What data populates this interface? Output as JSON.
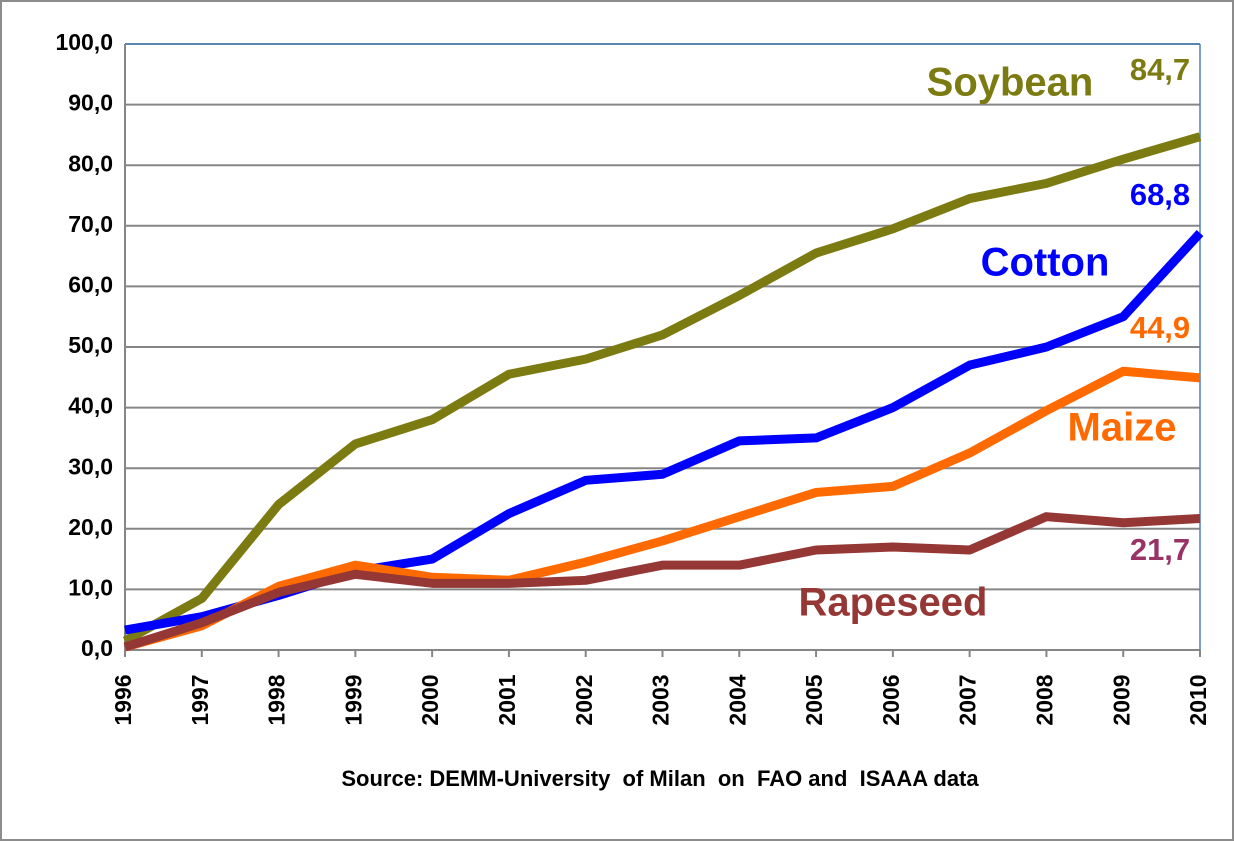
{
  "chart_data": {
    "type": "line",
    "categories": [
      "1996",
      "1997",
      "1998",
      "1999",
      "2000",
      "2001",
      "2002",
      "2003",
      "2004",
      "2005",
      "2006",
      "2007",
      "2008",
      "2009",
      "2010"
    ],
    "series": [
      {
        "name": "Soybean",
        "color": "#7b7b12",
        "label_color": "#7b7b12",
        "values": [
          1.5,
          8.5,
          24,
          34,
          38,
          45.5,
          48,
          52,
          58.5,
          65.5,
          69.5,
          74.5,
          77,
          81,
          84.7
        ],
        "value_labels": [
          null,
          null,
          null,
          null,
          null,
          null,
          null,
          null,
          null,
          null,
          null,
          null,
          null,
          null,
          "84,7"
        ]
      },
      {
        "name": "Cotton",
        "color": "#0000ff",
        "label_color": "#0000ff",
        "values": [
          3.3,
          5.5,
          9,
          13,
          15,
          22.5,
          28,
          29,
          34.5,
          35,
          40,
          47,
          50,
          55,
          68.8
        ],
        "value_labels": [
          null,
          null,
          null,
          null,
          null,
          null,
          null,
          null,
          null,
          null,
          null,
          null,
          null,
          null,
          "68,8"
        ]
      },
      {
        "name": "Maize",
        "color": "#ff6a00",
        "label_color": "#ff6a00",
        "values": [
          0.5,
          4,
          10.5,
          14,
          12,
          11.5,
          14.5,
          18,
          22,
          26,
          27,
          32.5,
          39.5,
          46,
          44.9
        ],
        "value_labels": [
          null,
          null,
          null,
          null,
          null,
          null,
          null,
          null,
          null,
          null,
          null,
          null,
          null,
          null,
          "44,9"
        ]
      },
      {
        "name": "Rapeseed",
        "color": "#953735",
        "label_color": "#993366",
        "values": [
          0.5,
          4.5,
          9.5,
          12.5,
          11,
          11,
          11.5,
          14,
          14,
          16.5,
          17,
          16.5,
          22,
          21,
          21.7
        ],
        "value_labels": [
          null,
          null,
          null,
          null,
          null,
          null,
          null,
          null,
          null,
          null,
          null,
          null,
          null,
          null,
          "21,7"
        ]
      }
    ],
    "ylim": [
      0,
      100
    ],
    "yticks": [
      {
        "value": 0,
        "label": "0,0"
      },
      {
        "value": 10,
        "label": "10,0"
      },
      {
        "value": 20,
        "label": "20,0"
      },
      {
        "value": 30,
        "label": "30,0"
      },
      {
        "value": 40,
        "label": "40,0"
      },
      {
        "value": 50,
        "label": "50,0"
      },
      {
        "value": 60,
        "label": "60,0"
      },
      {
        "value": 70,
        "label": "70,0"
      },
      {
        "value": 80,
        "label": "80,0"
      },
      {
        "value": 90,
        "label": "90,0"
      },
      {
        "value": 100,
        "label": "100,0"
      }
    ],
    "grid": true,
    "source": "Source: DEMM-University  of Milan  on  FAO and  ISAAA data"
  }
}
